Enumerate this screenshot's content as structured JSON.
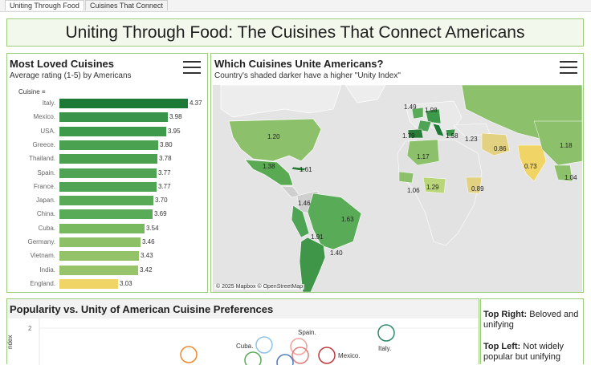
{
  "tabs": [
    {
      "label": "Uniting Through Food",
      "active": true
    },
    {
      "label": "Cuisines That Connect",
      "active": false
    }
  ],
  "dashboard_title": "Uniting Through Food: The Cuisines That Connect Americans",
  "loved_panel": {
    "title": "Most Loved Cuisines",
    "subtitle": "Average rating (1-5) by Americans",
    "column_header": "Cuisine",
    "menu_icon": "hamburger-menu-icon"
  },
  "map_panel": {
    "title": "Which Cuisines Unite Americans?",
    "subtitle": "Country's shaded darker have a higher \"Unity Index\"",
    "credit": "© 2025 Mapbox © OpenStreetMap",
    "menu_icon": "hamburger-menu-icon",
    "labels": [
      "1.20",
      "1.38",
      "1.61",
      "1.46",
      "1.63",
      "1.91",
      "1.40",
      "1.79",
      "1.17",
      "1.06",
      "1.29",
      "0.89",
      "1.58",
      "1.23",
      "0.86",
      "0.73",
      "1.18",
      "1.04",
      "1.49",
      "1.98"
    ]
  },
  "scatter_panel": {
    "title": "Popularity vs. Unity of American Cuisine Preferences",
    "y_axis_label": "ndex",
    "y_tick": "2",
    "points": [
      "Spain.",
      "Italy.",
      "Cuba.",
      "Mexico."
    ]
  },
  "notes": [
    {
      "bold": "Top Right:",
      "text": " Beloved and unifying"
    },
    {
      "bold": "Top Left:",
      "text": " Not widely popular but unifying"
    }
  ],
  "chart_data": [
    {
      "type": "bar",
      "title": "Most Loved Cuisines",
      "subtitle": "Average rating (1-5) by Americans",
      "xlabel": "",
      "ylabel": "Cuisine",
      "categories": [
        "Italy.",
        "Mexico.",
        "USA.",
        "Greece.",
        "Thailand.",
        "Spain.",
        "France.",
        "Japan.",
        "China.",
        "Cuba.",
        "Germany.",
        "Vietnam.",
        "India.",
        "England."
      ],
      "values": [
        4.37,
        3.98,
        3.95,
        3.8,
        3.78,
        3.77,
        3.77,
        3.7,
        3.69,
        3.54,
        3.46,
        3.43,
        3.42,
        3.03
      ],
      "value_labels": [
        "4.37",
        "3.98",
        "3.95",
        "3.80",
        "3.78",
        "3.77",
        "3.77",
        "3.70",
        "3.69",
        "3.54",
        "3.46",
        "3.43",
        "3.42",
        "3.03"
      ],
      "colors": [
        "#1c7a36",
        "#3a9449",
        "#3d9a4a",
        "#4aa150",
        "#4ca151",
        "#4ea354",
        "#4ea354",
        "#58aa57",
        "#5aab58",
        "#78b85e",
        "#8ec067",
        "#94c268",
        "#97c46a",
        "#f1d466"
      ],
      "xlim": [
        0,
        4.6
      ]
    }
  ]
}
